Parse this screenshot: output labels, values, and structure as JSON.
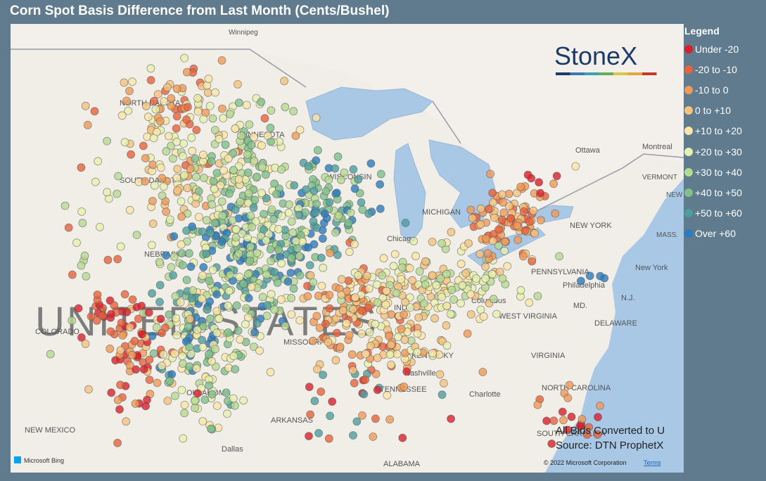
{
  "title": "Corn Spot Basis Difference from Last Month (Cents/Bushel)",
  "logo": "StoneX",
  "legend": {
    "title": "Legend",
    "items": [
      {
        "label": "Under -20",
        "color": "#d9202b"
      },
      {
        "label": "-20 to -10",
        "color": "#e8623c"
      },
      {
        "label": "-10 to 0",
        "color": "#f09a58"
      },
      {
        "label": "0 to +10",
        "color": "#f6c27e"
      },
      {
        "label": "+10 to +20",
        "color": "#fbe6a6"
      },
      {
        "label": "+20 to +30",
        "color": "#e8f0ad"
      },
      {
        "label": "+30 to +40",
        "color": "#b7da92"
      },
      {
        "label": "+40 to +50",
        "color": "#80c08b"
      },
      {
        "label": "+50 to +60",
        "color": "#4d9f9f"
      },
      {
        "label": "Over +60",
        "color": "#2c7bbd"
      }
    ]
  },
  "map": {
    "labels": [
      "Winnipeg",
      "NORTH DAKOTA",
      "MINNESOTA",
      "SOUTH DAKOTA",
      "NEBRASKA",
      "UNITED STATES",
      "COLORADO",
      "MISSOURI",
      "KENTUCKY",
      "TENNESSEE",
      "OKLAHOMA",
      "ARKANSAS",
      "NEW MEXICO",
      "Dallas",
      "ALABAMA",
      "Nashville",
      "Charlotte",
      "NORTH CAROLINA",
      "SOUTH CAROLINA",
      "VIRGINIA",
      "WEST VIRGINIA",
      "Columbus",
      "INDIANA",
      "Chicago",
      "WISCONSIN",
      "MICHIGAN",
      "PENNSYLVANIA",
      "Philadelphia",
      "MD.",
      "DELAWARE",
      "N.J.",
      "NEW YORK",
      "New York",
      "MASS.",
      "VERMONT",
      "NEW HAMPSHIRE",
      "Ottawa",
      "Montreal"
    ],
    "attribution": "Microsoft Bing",
    "copyright": "© 2022 Microsoft Corporation",
    "terms": "Terms"
  },
  "notes": [
    "All Bids Converted to U",
    "Source: DTN ProphetX"
  ]
}
